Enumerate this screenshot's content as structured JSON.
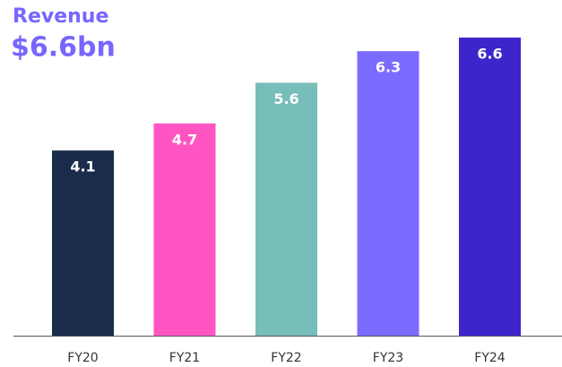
{
  "chart_data": {
    "type": "bar",
    "title": "Revenue",
    "subtitle": "$6.6bn",
    "categories": [
      "FY20",
      "FY21",
      "FY22",
      "FY23",
      "FY24"
    ],
    "values": [
      4.1,
      4.7,
      5.6,
      6.3,
      6.6
    ],
    "colors": [
      "#1b2b4b",
      "#ff55c2",
      "#77bdb9",
      "#7b6bff",
      "#3d25cc"
    ],
    "title_color": "#7766ff"
  }
}
